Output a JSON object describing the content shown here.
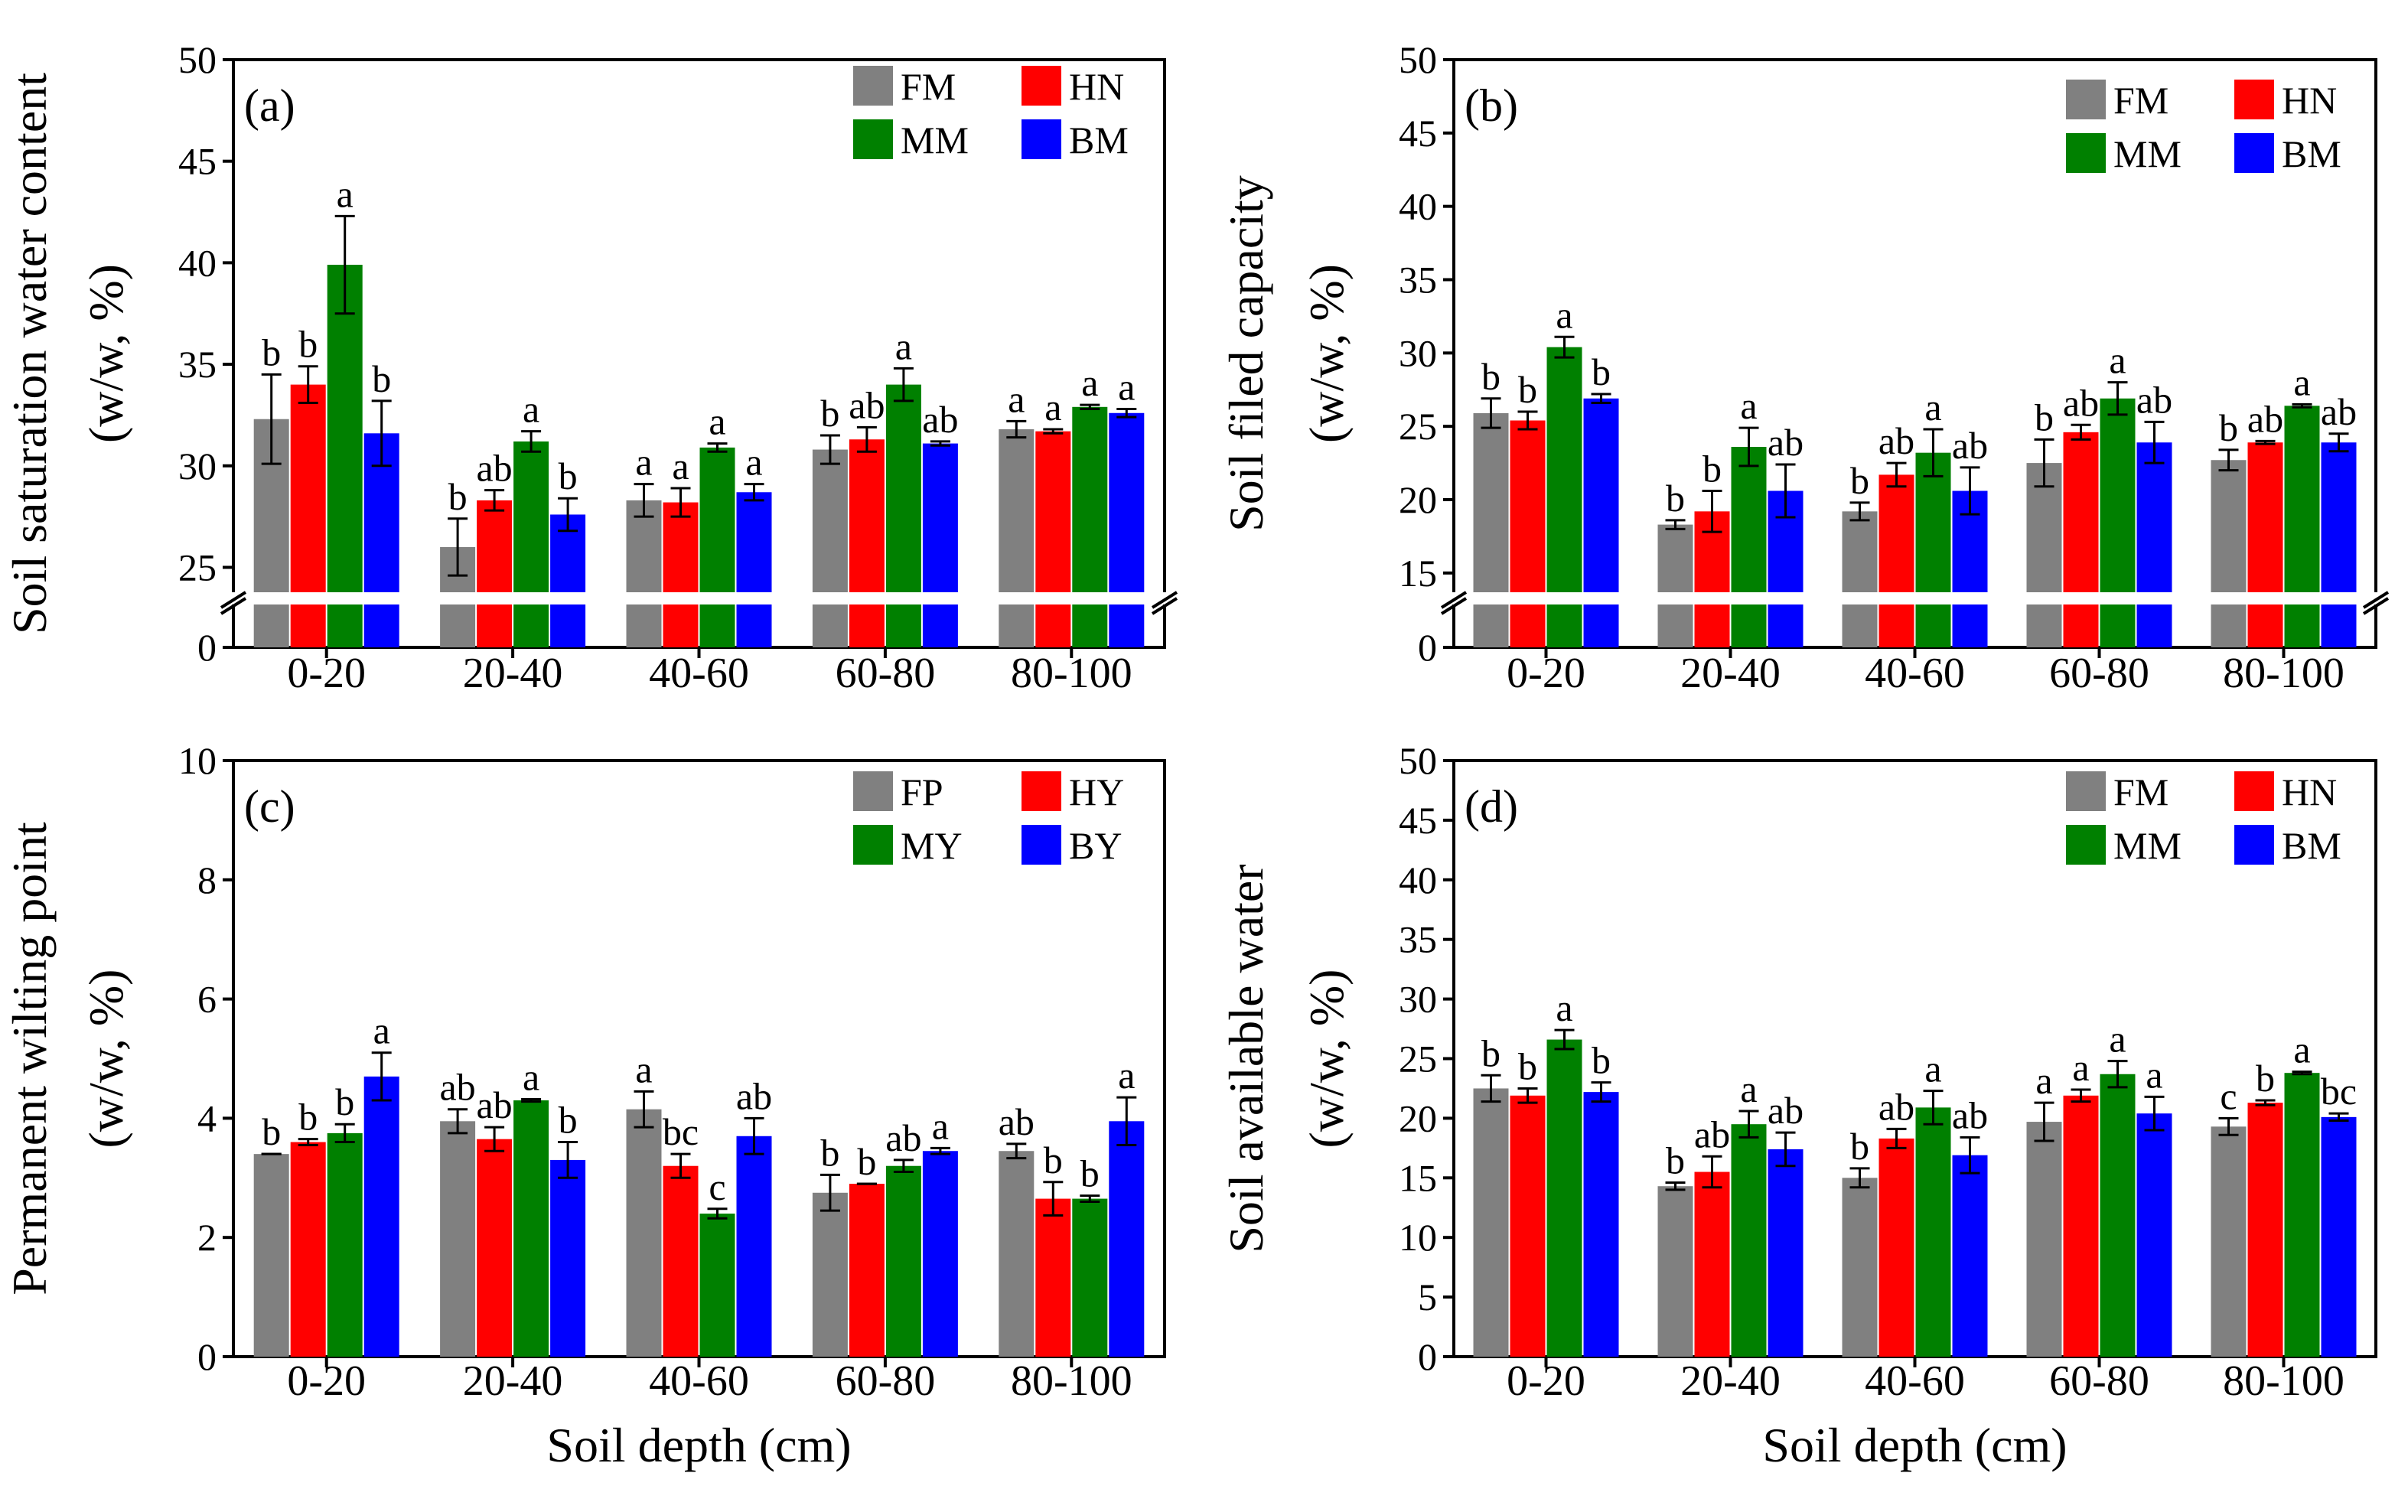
{
  "chart_data": [
    {
      "id": "a",
      "type": "bar",
      "panel_label": "(a)",
      "ylabel": "Soil saturation water content",
      "ylabel_units": "(w/w, %)",
      "xlabel": "",
      "categories": [
        "0-20",
        "20-40",
        "40-60",
        "60-80",
        "80-100"
      ],
      "ylim": [
        24,
        50
      ],
      "y_ticks": [
        25,
        30,
        35,
        40,
        45,
        50
      ],
      "axis_break": true,
      "below_break_tick": 0,
      "legend": [
        {
          "name": "FM",
          "color": "#808080"
        },
        {
          "name": "HN",
          "color": "#ff0000"
        },
        {
          "name": "MM",
          "color": "#008000"
        },
        {
          "name": "BM",
          "color": "#0000ff"
        }
      ],
      "series": [
        {
          "name": "FM",
          "values": [
            32.3,
            26.0,
            28.3,
            30.8,
            31.8
          ],
          "errors": [
            2.2,
            1.4,
            0.8,
            0.7,
            0.4
          ],
          "letters": [
            "b",
            "b",
            "a",
            "b",
            "a"
          ]
        },
        {
          "name": "HN",
          "values": [
            34.0,
            28.3,
            28.2,
            31.3,
            31.7
          ],
          "errors": [
            0.9,
            0.5,
            0.7,
            0.6,
            0.1
          ],
          "letters": [
            "b",
            "ab",
            "a",
            "ab",
            "a"
          ]
        },
        {
          "name": "MM",
          "values": [
            39.9,
            31.2,
            30.9,
            34.0,
            32.9
          ],
          "errors": [
            2.4,
            0.5,
            0.2,
            0.8,
            0.1
          ],
          "letters": [
            "a",
            "a",
            "a",
            "a",
            "a"
          ]
        },
        {
          "name": "BM",
          "values": [
            31.6,
            27.6,
            28.7,
            31.1,
            32.6
          ],
          "errors": [
            1.6,
            0.8,
            0.4,
            0.1,
            0.2
          ],
          "letters": [
            "b",
            "b",
            "a",
            "ab",
            "a"
          ]
        }
      ]
    },
    {
      "id": "b",
      "type": "bar",
      "panel_label": "(b)",
      "ylabel": "Soil filed capacity",
      "ylabel_units": "(w/w, %)",
      "xlabel": "",
      "categories": [
        "0-20",
        "20-40",
        "40-60",
        "60-80",
        "80-100"
      ],
      "ylim": [
        14,
        50
      ],
      "y_ticks": [
        15,
        20,
        25,
        30,
        35,
        40,
        45,
        50
      ],
      "axis_break": true,
      "below_break_tick": 0,
      "legend": [
        {
          "name": "FM",
          "color": "#808080"
        },
        {
          "name": "HN",
          "color": "#ff0000"
        },
        {
          "name": "MM",
          "color": "#008000"
        },
        {
          "name": "BM",
          "color": "#0000ff"
        }
      ],
      "series": [
        {
          "name": "FM",
          "values": [
            25.9,
            18.3,
            19.2,
            22.5,
            22.7
          ],
          "errors": [
            1.0,
            0.3,
            0.6,
            1.6,
            0.7
          ],
          "letters": [
            "b",
            "b",
            "b",
            "b",
            "b"
          ]
        },
        {
          "name": "HN",
          "values": [
            25.4,
            19.2,
            21.7,
            24.6,
            23.9
          ],
          "errors": [
            0.6,
            1.4,
            0.8,
            0.5,
            0.1
          ],
          "letters": [
            "b",
            "b",
            "ab",
            "ab",
            "ab"
          ]
        },
        {
          "name": "MM",
          "values": [
            30.4,
            23.6,
            23.2,
            26.9,
            26.4
          ],
          "errors": [
            0.7,
            1.3,
            1.6,
            1.1,
            0.1
          ],
          "letters": [
            "a",
            "a",
            "a",
            "a",
            "a"
          ]
        },
        {
          "name": "BM",
          "values": [
            26.9,
            20.6,
            20.6,
            23.9,
            23.9
          ],
          "errors": [
            0.3,
            1.8,
            1.6,
            1.4,
            0.6
          ],
          "letters": [
            "b",
            "ab",
            "ab",
            "ab",
            "ab"
          ]
        }
      ]
    },
    {
      "id": "c",
      "type": "bar",
      "panel_label": "(c)",
      "ylabel": "Permanent wilting point",
      "ylabel_units": "(w/w, %)",
      "xlabel": "Soil depth (cm)",
      "categories": [
        "0-20",
        "20-40",
        "40-60",
        "60-80",
        "80-100"
      ],
      "ylim": [
        0,
        10
      ],
      "y_ticks": [
        0,
        2,
        4,
        6,
        8,
        10
      ],
      "axis_break": false,
      "legend": [
        {
          "name": "FP",
          "color": "#808080"
        },
        {
          "name": "HY",
          "color": "#ff0000"
        },
        {
          "name": "MY",
          "color": "#008000"
        },
        {
          "name": "BY",
          "color": "#0000ff"
        }
      ],
      "series": [
        {
          "name": "FP",
          "values": [
            3.4,
            3.95,
            4.15,
            2.75,
            3.45
          ],
          "errors": [
            0.0,
            0.2,
            0.3,
            0.3,
            0.12
          ],
          "letters": [
            "b",
            "ab",
            "a",
            "b",
            "ab"
          ]
        },
        {
          "name": "HY",
          "values": [
            3.6,
            3.65,
            3.2,
            2.9,
            2.65
          ],
          "errors": [
            0.05,
            0.2,
            0.2,
            0.0,
            0.28
          ],
          "letters": [
            "b",
            "ab",
            "bc",
            "b",
            "b"
          ]
        },
        {
          "name": "MY",
          "values": [
            3.75,
            4.3,
            2.4,
            3.2,
            2.65
          ],
          "errors": [
            0.15,
            0.02,
            0.08,
            0.1,
            0.05
          ],
          "letters": [
            "b",
            "a",
            "c",
            "ab",
            "b"
          ]
        },
        {
          "name": "BY",
          "values": [
            4.7,
            3.3,
            3.7,
            3.45,
            3.95
          ],
          "errors": [
            0.4,
            0.3,
            0.3,
            0.05,
            0.4
          ],
          "letters": [
            "a",
            "b",
            "ab",
            "a",
            "a"
          ]
        }
      ]
    },
    {
      "id": "d",
      "type": "bar",
      "panel_label": "(d)",
      "ylabel": "Soil available water",
      "ylabel_units": "(w/w,  %)",
      "xlabel": "Soil depth (cm)",
      "categories": [
        "0-20",
        "20-40",
        "40-60",
        "60-80",
        "80-100"
      ],
      "ylim": [
        0,
        50
      ],
      "y_ticks": [
        0,
        5,
        10,
        15,
        20,
        25,
        30,
        35,
        40,
        45,
        50
      ],
      "axis_break": false,
      "legend": [
        {
          "name": "FM",
          "color": "#808080"
        },
        {
          "name": "HN",
          "color": "#ff0000"
        },
        {
          "name": "MM",
          "color": "#008000"
        },
        {
          "name": "BM",
          "color": "#0000ff"
        }
      ],
      "series": [
        {
          "name": "FM",
          "values": [
            22.5,
            14.3,
            15.0,
            19.7,
            19.3
          ],
          "errors": [
            1.1,
            0.3,
            0.8,
            1.6,
            0.7
          ],
          "letters": [
            "b",
            "b",
            "b",
            "a",
            "c"
          ]
        },
        {
          "name": "HN",
          "values": [
            21.9,
            15.5,
            18.3,
            21.9,
            21.3
          ],
          "errors": [
            0.6,
            1.3,
            0.8,
            0.5,
            0.2
          ],
          "letters": [
            "b",
            "ab",
            "ab",
            "a",
            "b"
          ]
        },
        {
          "name": "MM",
          "values": [
            26.6,
            19.5,
            20.9,
            23.7,
            23.8
          ],
          "errors": [
            0.8,
            1.1,
            1.4,
            1.1,
            0.1
          ],
          "letters": [
            "a",
            "a",
            "a",
            "a",
            "a"
          ]
        },
        {
          "name": "BM",
          "values": [
            22.2,
            17.4,
            16.9,
            20.4,
            20.1
          ],
          "errors": [
            0.8,
            1.4,
            1.5,
            1.4,
            0.3
          ],
          "letters": [
            "b",
            "ab",
            "ab",
            "a",
            "bc"
          ]
        }
      ]
    }
  ]
}
